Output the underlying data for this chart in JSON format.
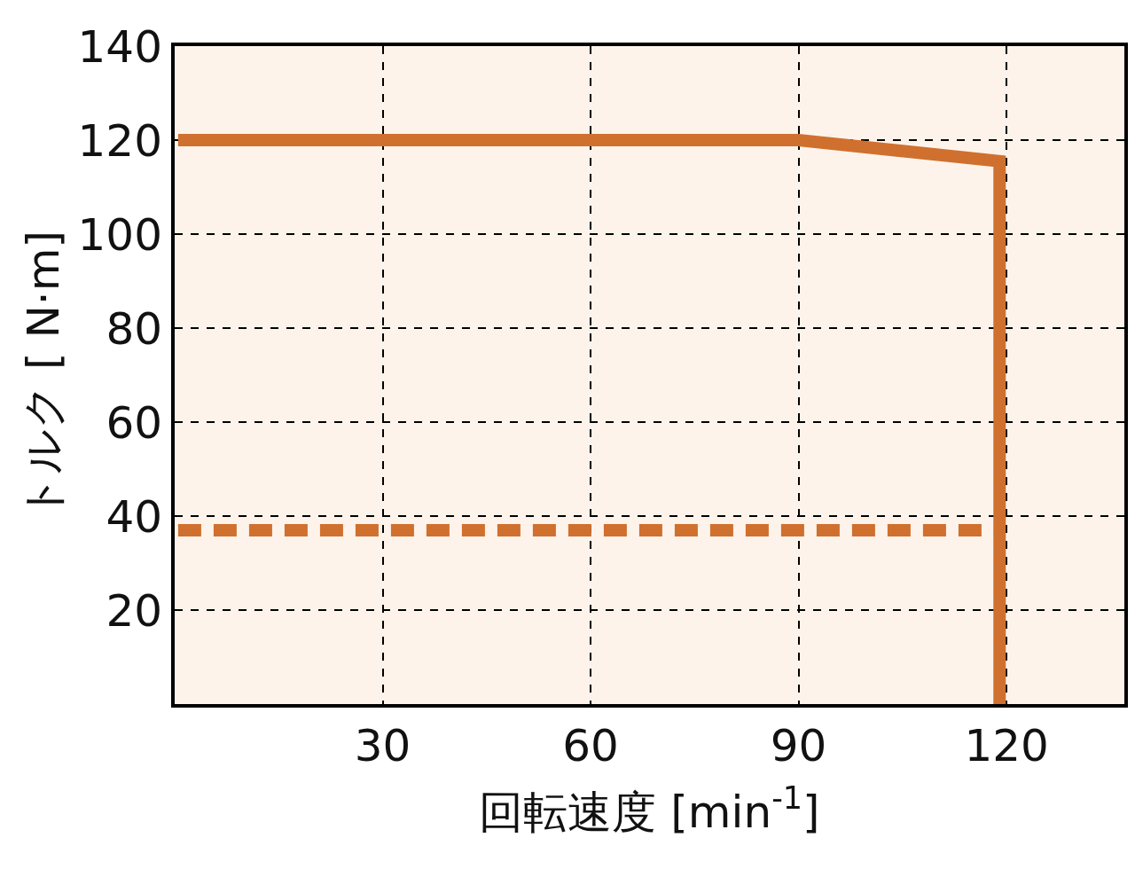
{
  "chart_data": {
    "type": "line",
    "xlabel": "回転速度 [min$^{-1}$]",
    "ylabel": "トルク [ N·m]",
    "xlim": [
      0,
      137
    ],
    "xticks": [
      30,
      60,
      90,
      120
    ],
    "ylim": [
      0,
      140
    ],
    "yticks": [
      20,
      40,
      60,
      80,
      100,
      120,
      140
    ],
    "grid": true,
    "marker": "none",
    "series": [
      {
        "color": "#d0702e",
        "line_style": "solid",
        "x": [
          0.5,
          90,
          119,
          119
        ],
        "values": [
          120,
          120,
          115.5,
          0
        ]
      },
      {
        "color": "#d0702e",
        "line_style": "dashed",
        "x": [
          0.5,
          119
        ],
        "values": [
          37,
          37
        ]
      }
    ]
  }
}
